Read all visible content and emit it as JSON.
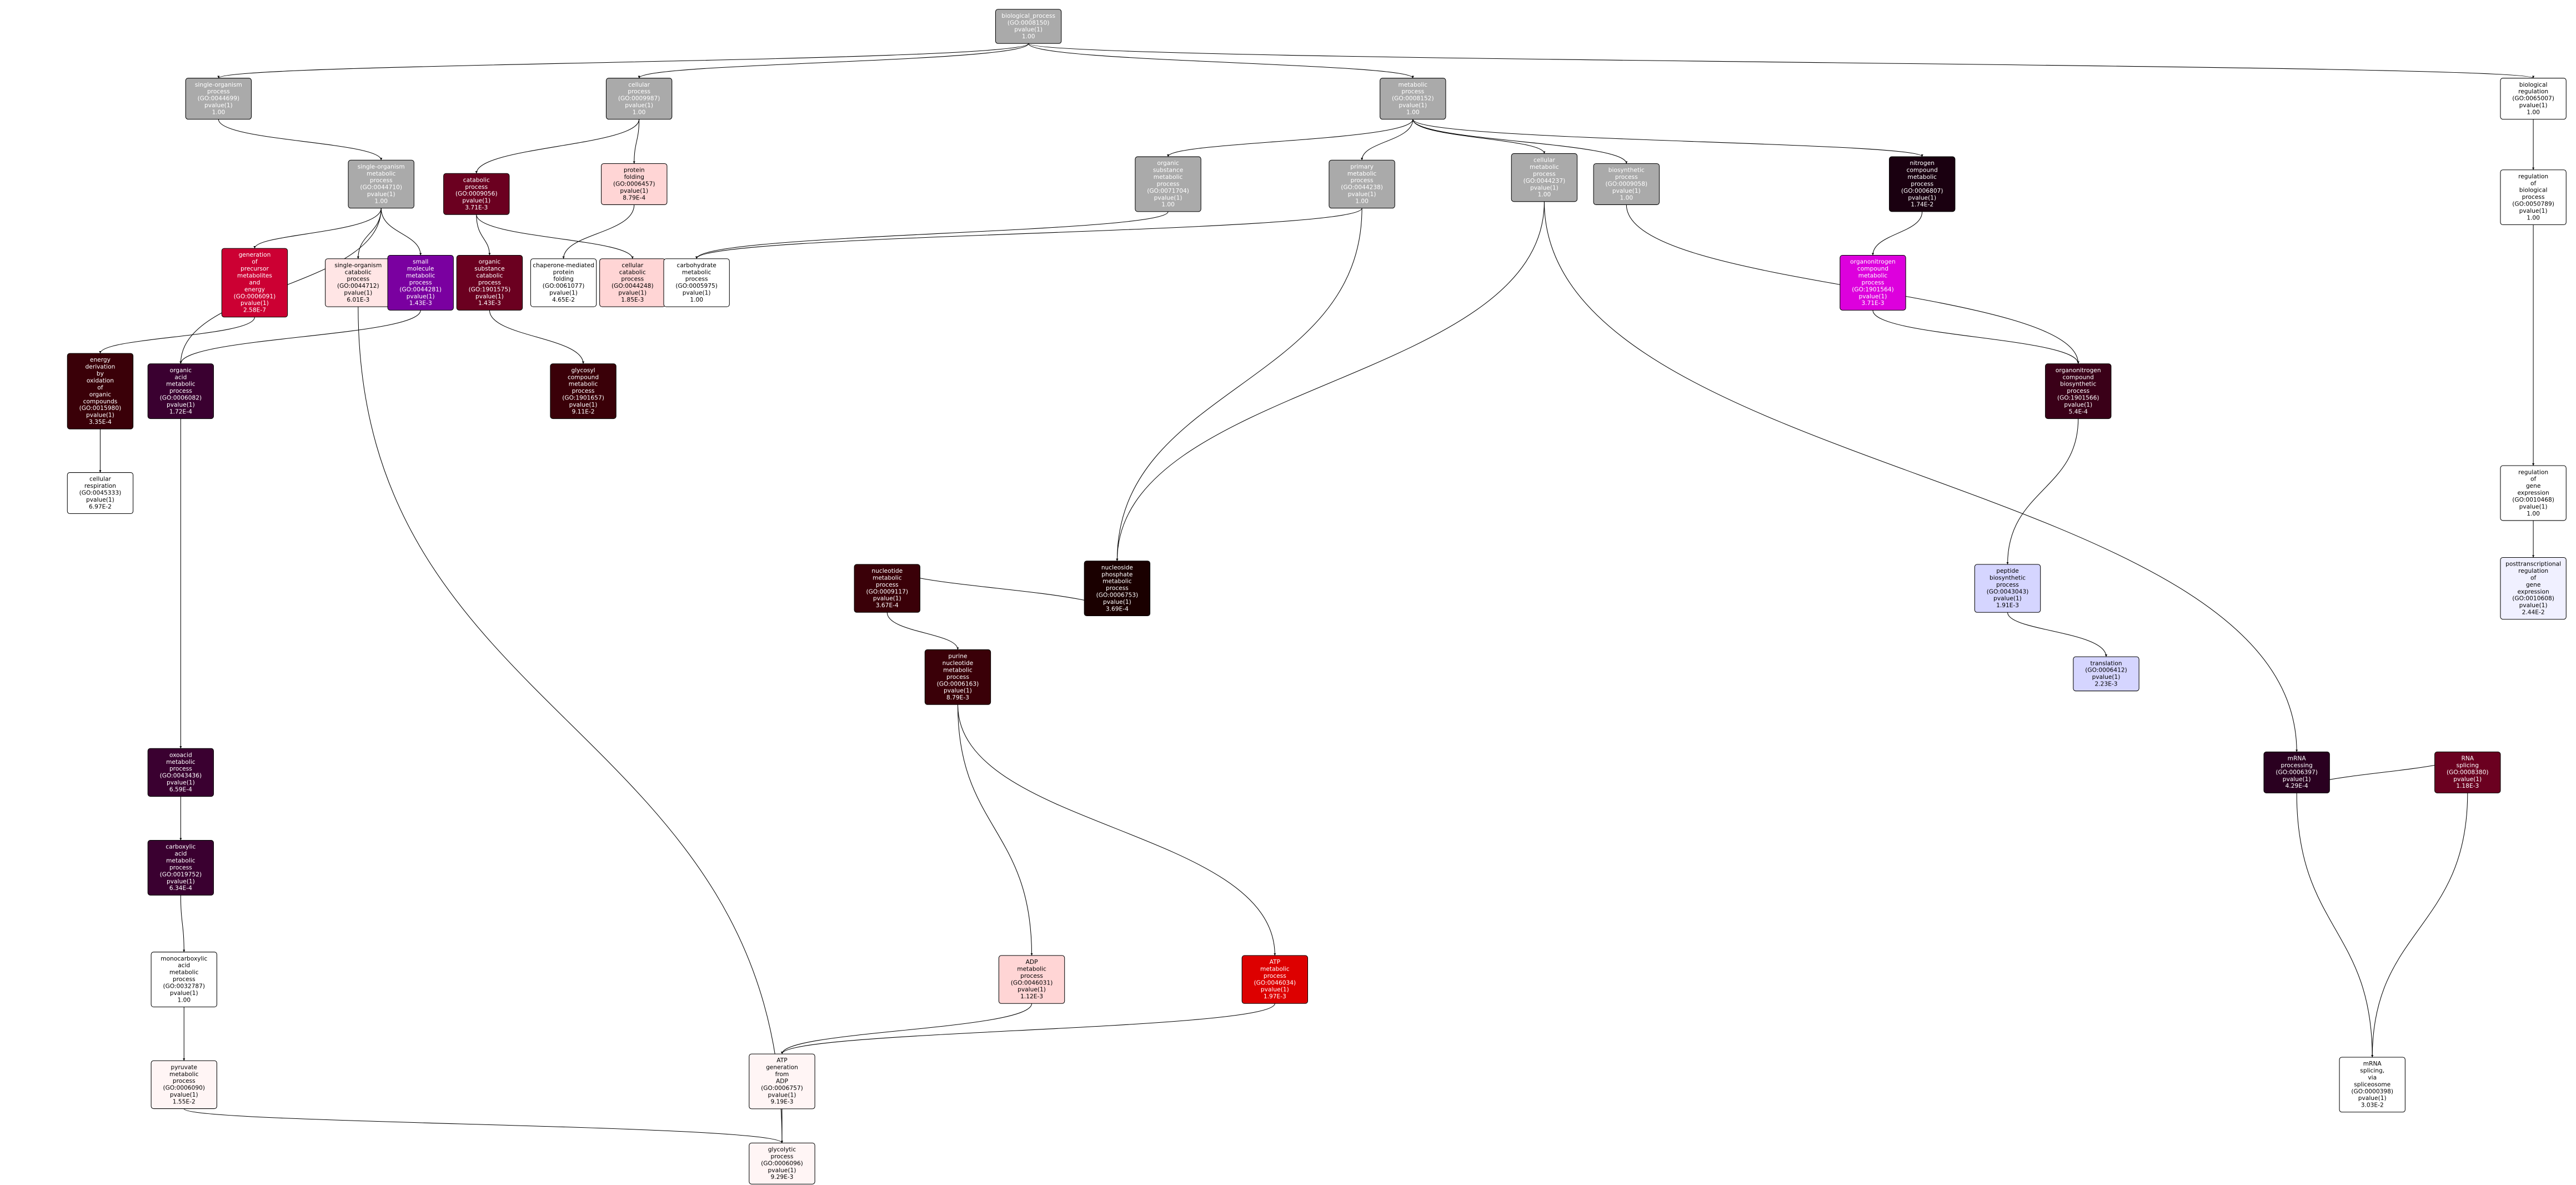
{
  "nodes": [
    {
      "lines": [
        "biological_process",
        "(GO:0008150)",
        "pvalue(1)",
        "1.00"
      ],
      "color": "#aaaaaa"
    },
    {
      "lines": [
        "single-organism",
        "process",
        "(GO:0044699)",
        "pvalue(1)",
        "1.00"
      ],
      "color": "#aaaaaa"
    },
    {
      "lines": [
        "cellular",
        "process",
        "(GO:0009987)",
        "pvalue(1)",
        "1.00"
      ],
      "color": "#aaaaaa"
    },
    {
      "lines": [
        "metabolic",
        "process",
        "(GO:0008152)",
        "pvalue(1)",
        "1.00"
      ],
      "color": "#aaaaaa"
    },
    {
      "lines": [
        "biological",
        "regulation",
        "(GO:0065007)",
        "pvalue(1)",
        "1.00"
      ],
      "color": "#ffffff"
    },
    {
      "lines": [
        "single-organism",
        "metabolic",
        "process",
        "(GO:0044710)",
        "pvalue(1)",
        "1.00"
      ],
      "color": "#aaaaaa"
    },
    {
      "lines": [
        "catabolic",
        "process",
        "(GO:0009056)",
        "pvalue(1)",
        "3.71E-3"
      ],
      "color": "#6b0020"
    },
    {
      "lines": [
        "protein",
        "folding",
        "(GO:0006457)",
        "pvalue(1)",
        "8.79E-4"
      ],
      "color": "#ffd5d5"
    },
    {
      "lines": [
        "organic",
        "substance",
        "metabolic",
        "process",
        "(GO:0071704)",
        "pvalue(1)",
        "1.00"
      ],
      "color": "#aaaaaa"
    },
    {
      "lines": [
        "primary",
        "metabolic",
        "process",
        "(GO:0044238)",
        "pvalue(1)",
        "1.00"
      ],
      "color": "#aaaaaa"
    },
    {
      "lines": [
        "cellular",
        "metabolic",
        "process",
        "(GO:0044237)",
        "pvalue(1)",
        "1.00"
      ],
      "color": "#aaaaaa"
    },
    {
      "lines": [
        "biosynthetic",
        "process",
        "(GO:0009058)",
        "pvalue(1)",
        "1.00"
      ],
      "color": "#aaaaaa"
    },
    {
      "lines": [
        "nitrogen",
        "compound",
        "metabolic",
        "process",
        "(GO:0006807)",
        "pvalue(1)",
        "1.74E-2"
      ],
      "color": "#1a0010"
    },
    {
      "lines": [
        "regulation",
        "of",
        "biological",
        "process",
        "(GO:0050789)",
        "pvalue(1)",
        "1.00"
      ],
      "color": "#ffffff"
    },
    {
      "lines": [
        "generation",
        "of",
        "precursor",
        "metabolites",
        "and",
        "energy",
        "(GO:0006091)",
        "pvalue(1)",
        "2.58E-7"
      ],
      "color": "#cc0033"
    },
    {
      "lines": [
        "single-organism",
        "catabolic",
        "process",
        "(GO:0044712)",
        "pvalue(1)",
        "6.01E-3"
      ],
      "color": "#ffe5e5"
    },
    {
      "lines": [
        "small",
        "molecule",
        "metabolic",
        "process",
        "(GO:0044281)",
        "pvalue(1)",
        "1.43E-3"
      ],
      "color": "#7a00a0"
    },
    {
      "lines": [
        "organic",
        "substance",
        "catabolic",
        "process",
        "(GO:1901575)",
        "pvalue(1)",
        "1.43E-3"
      ],
      "color": "#6b0020"
    },
    {
      "lines": [
        "chaperone-mediated",
        "protein",
        "folding",
        "(GO:0061077)",
        "pvalue(1)",
        "4.65E-2"
      ],
      "color": "#ffffff"
    },
    {
      "lines": [
        "cellular",
        "catabolic",
        "process",
        "(GO:0044248)",
        "pvalue(1)",
        "1.85E-3"
      ],
      "color": "#ffd5d5"
    },
    {
      "lines": [
        "carbohydrate",
        "metabolic",
        "process",
        "(GO:0005975)",
        "pvalue(1)",
        "1.00"
      ],
      "color": "#ffffff"
    },
    {
      "lines": [
        "energy",
        "derivation",
        "by",
        "oxidation",
        "of",
        "organic",
        "compounds",
        "(GO:0015980)",
        "pvalue(1)",
        "3.35E-4"
      ],
      "color": "#3a0008"
    },
    {
      "lines": [
        "organic",
        "acid",
        "metabolic",
        "process",
        "(GO:0006082)",
        "pvalue(1)",
        "1.72E-4"
      ],
      "color": "#3a0030"
    },
    {
      "lines": [
        "glycosyl",
        "compound",
        "metabolic",
        "process",
        "(GO:1901657)",
        "pvalue(1)",
        "9.11E-2"
      ],
      "color": "#3a0008"
    },
    {
      "lines": [
        "ATP",
        "metabolic",
        "process",
        "(GO:0046034)",
        "pvalue(1)",
        "1.97E-3"
      ],
      "color": "#dd0000"
    },
    {
      "lines": [
        "ADP",
        "metabolic",
        "process",
        "(GO:0046031)",
        "pvalue(1)",
        "1.12E-3"
      ],
      "color": "#ffd5d5"
    },
    {
      "lines": [
        "ATP",
        "generation",
        "from",
        "ADP",
        "(GO:0006757)",
        "pvalue(1)",
        "9.19E-3"
      ],
      "color": "#fff5f5"
    },
    {
      "lines": [
        "glycolytic",
        "process",
        "(GO:0006096)",
        "pvalue(1)",
        "9.29E-3"
      ],
      "color": "#fff5f5"
    },
    {
      "lines": [
        "pyruvate",
        "metabolic",
        "process",
        "(GO:0006090)",
        "pvalue(1)",
        "1.55E-2"
      ],
      "color": "#fff5f5"
    },
    {
      "lines": [
        "monocarboxylic",
        "acid",
        "metabolic",
        "process",
        "(GO:0032787)",
        "pvalue(1)",
        "1.00"
      ],
      "color": "#ffffff"
    },
    {
      "lines": [
        "carboxylic",
        "acid",
        "metabolic",
        "process",
        "(GO:0019752)",
        "pvalue(1)",
        "6.34E-4"
      ],
      "color": "#3a0030"
    },
    {
      "lines": [
        "oxoacid",
        "metabolic",
        "process",
        "(GO:0043436)",
        "pvalue(1)",
        "6.59E-4"
      ],
      "color": "#3a0030"
    },
    {
      "lines": [
        "cellular",
        "respiration",
        "(GO:0045333)",
        "pvalue(1)",
        "6.97E-2"
      ],
      "color": "#ffffff"
    },
    {
      "lines": [
        "nucleoside",
        "phosphate",
        "metabolic",
        "process",
        "(GO:0006753)",
        "pvalue(1)",
        "3.69E-4"
      ],
      "color": "#1a0000"
    },
    {
      "lines": [
        "nucleotide",
        "metabolic",
        "process",
        "(GO:0009117)",
        "pvalue(1)",
        "3.67E-4"
      ],
      "color": "#3a0008"
    },
    {
      "lines": [
        "purine",
        "nucleotide",
        "metabolic",
        "process",
        "(GO:0006163)",
        "pvalue(1)",
        "8.79E-3"
      ],
      "color": "#3a0008"
    },
    {
      "lines": [
        "translation",
        "(GO:0006412)",
        "pvalue(1)",
        "2.23E-3"
      ],
      "color": "#d5d5ff"
    },
    {
      "lines": [
        "peptide",
        "biosynthetic",
        "process",
        "(GO:0043043)",
        "pvalue(1)",
        "1.91E-3"
      ],
      "color": "#d5d5ff"
    },
    {
      "lines": [
        "mRNA",
        "processing",
        "(GO:0006397)",
        "pvalue(1)",
        "4.29E-4"
      ],
      "color": "#2a0020"
    },
    {
      "lines": [
        "RNA",
        "splicing",
        "(GO:0008380)",
        "pvalue(1)",
        "1.18E-3"
      ],
      "color": "#6b0020"
    },
    {
      "lines": [
        "mRNA",
        "splicing,",
        "via",
        "spliceosome",
        "(GO:0000398)",
        "pvalue(1)",
        "3.03E-2"
      ],
      "color": "#ffffff"
    },
    {
      "lines": [
        "posttranscriptional",
        "regulation",
        "of",
        "gene",
        "expression",
        "(GO:0010608)",
        "pvalue(1)",
        "2.44E-2"
      ],
      "color": "#f0f0ff"
    },
    {
      "lines": [
        "regulation",
        "of",
        "gene",
        "expression",
        "(GO:0010468)",
        "pvalue(1)",
        "1.00"
      ],
      "color": "#ffffff"
    },
    {
      "lines": [
        "organonitrogen",
        "compound",
        "metabolic",
        "process",
        "(GO:1901564)",
        "pvalue(1)",
        "3.71E-3"
      ],
      "color": "#dd00dd"
    },
    {
      "lines": [
        "organonitrogen",
        "compound",
        "biosynthetic",
        "process",
        "(GO:1901566)",
        "pvalue(1)",
        "5.4E-4"
      ],
      "color": "#3a0018"
    }
  ]
}
